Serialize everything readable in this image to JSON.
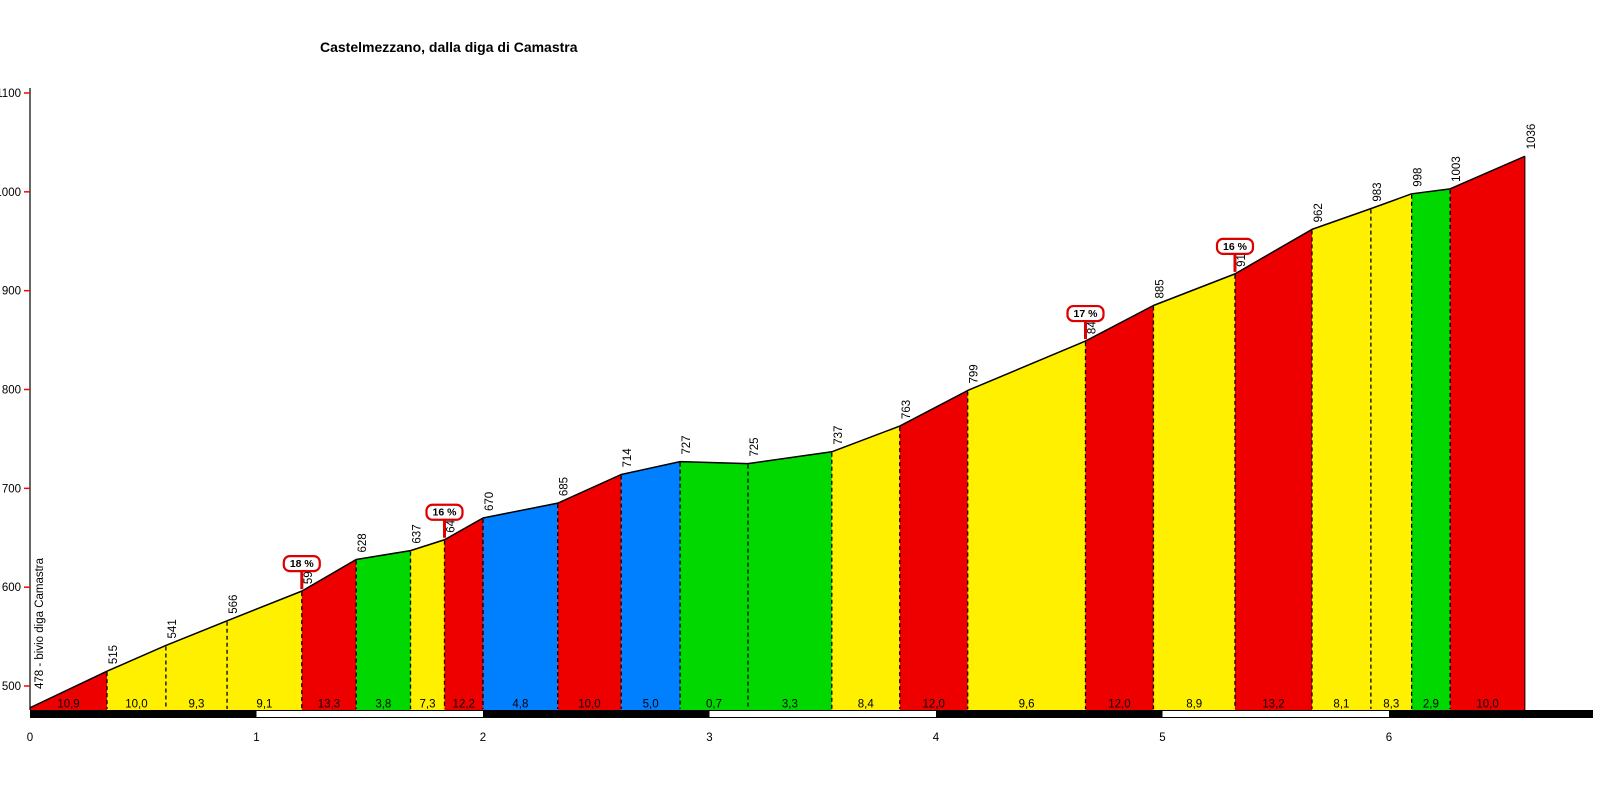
{
  "title": "Castelmezzano, dalla diga di Camastra",
  "chart_data": {
    "type": "area",
    "title": "Castelmezzano, dalla diga di Camastra",
    "start_label": "478 - bivio diga Camastra",
    "start": {
      "km": 0,
      "elevation": 478
    },
    "segments": [
      {
        "end_km": 0.34,
        "end_elevation": 515,
        "gradient": "10,9",
        "color": "red"
      },
      {
        "end_km": 0.6,
        "end_elevation": 541,
        "gradient": "10,0",
        "color": "yellow"
      },
      {
        "end_km": 0.87,
        "end_elevation": 566,
        "gradient": "9,3",
        "color": "yellow"
      },
      {
        "end_km": 1.2,
        "end_elevation": 596,
        "gradient": "9,1",
        "color": "yellow"
      },
      {
        "end_km": 1.44,
        "end_elevation": 628,
        "gradient": "13,3",
        "color": "red"
      },
      {
        "end_km": 1.68,
        "end_elevation": 637,
        "gradient": "3,8",
        "color": "green"
      },
      {
        "end_km": 1.83,
        "end_elevation": 648,
        "gradient": "7,3",
        "color": "yellow"
      },
      {
        "end_km": 2.0,
        "end_elevation": 670,
        "gradient": "12,2",
        "color": "red"
      },
      {
        "end_km": 2.33,
        "end_elevation": 685,
        "gradient": "4,8",
        "color": "blue"
      },
      {
        "end_km": 2.61,
        "end_elevation": 714,
        "gradient": "10,0",
        "color": "red"
      },
      {
        "end_km": 2.87,
        "end_elevation": 727,
        "gradient": "5,0",
        "color": "blue"
      },
      {
        "end_km": 3.17,
        "end_elevation": 725,
        "gradient": "0,7",
        "color": "green"
      },
      {
        "end_km": 3.54,
        "end_elevation": 737,
        "gradient": "3,3",
        "color": "green"
      },
      {
        "end_km": 3.84,
        "end_elevation": 763,
        "gradient": "8,4",
        "color": "yellow"
      },
      {
        "end_km": 4.14,
        "end_elevation": 799,
        "gradient": "12,0",
        "color": "red"
      },
      {
        "end_km": 4.66,
        "end_elevation": 849,
        "gradient": "9,6",
        "color": "yellow"
      },
      {
        "end_km": 4.96,
        "end_elevation": 885,
        "gradient": "12,0",
        "color": "red"
      },
      {
        "end_km": 5.32,
        "end_elevation": 917,
        "gradient": "8,9",
        "color": "yellow"
      },
      {
        "end_km": 5.66,
        "end_elevation": 962,
        "gradient": "13,2",
        "color": "red"
      },
      {
        "end_km": 5.92,
        "end_elevation": 983,
        "gradient": "8,1",
        "color": "yellow"
      },
      {
        "end_km": 6.1,
        "end_elevation": 998,
        "gradient": "8,3",
        "color": "yellow"
      },
      {
        "end_km": 6.27,
        "end_elevation": 1003,
        "gradient": "2,9",
        "color": "green"
      },
      {
        "end_km": 6.6,
        "end_elevation": 1036,
        "gradient": "10,0",
        "color": "red"
      }
    ],
    "max_gradient_markers": [
      {
        "km": 1.2,
        "elevation": 596,
        "label": "18 %"
      },
      {
        "km": 1.83,
        "elevation": 648,
        "label": "16 %"
      },
      {
        "km": 4.66,
        "elevation": 849,
        "label": "17 %"
      },
      {
        "km": 5.32,
        "elevation": 917,
        "label": "16 %"
      }
    ],
    "y_ticks": [
      500,
      600,
      700,
      800,
      900,
      1000,
      1100
    ],
    "x_ticks": [
      0,
      1,
      2,
      3,
      4,
      5,
      6
    ],
    "ylim": [
      475,
      1100
    ],
    "xlim": [
      0,
      6.6
    ],
    "grid": false,
    "legend": false,
    "colors": {
      "red": "#ee0000",
      "yellow": "#fff000",
      "green": "#00d800",
      "blue": "#0080ff",
      "marker_red": "#dd0000",
      "tick_red": "#ff0000",
      "bar_black": "#000000",
      "bar_white": "#ffffff"
    }
  }
}
